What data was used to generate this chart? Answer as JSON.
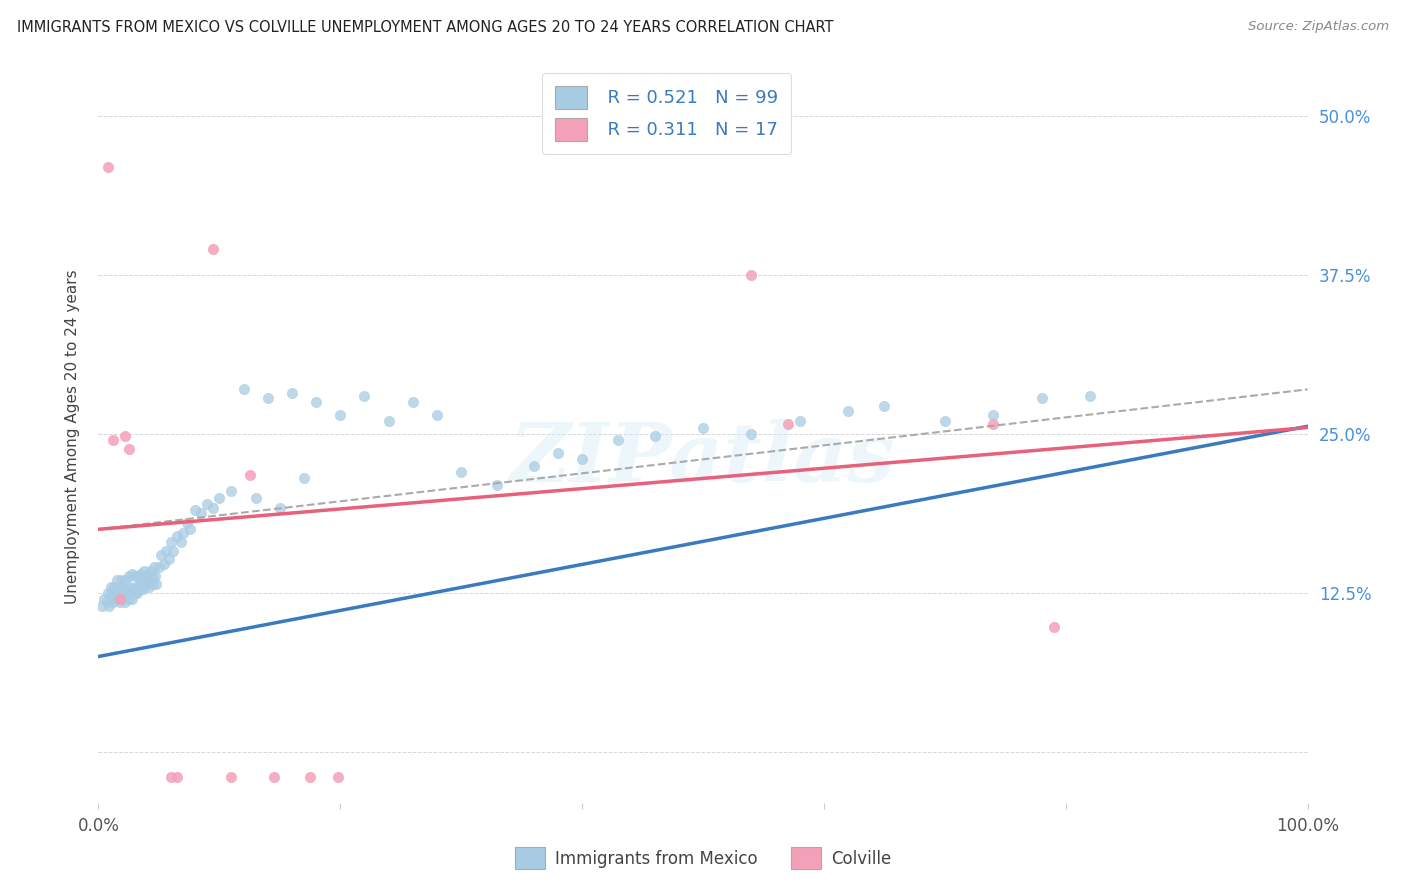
{
  "title": "IMMIGRANTS FROM MEXICO VS COLVILLE UNEMPLOYMENT AMONG AGES 20 TO 24 YEARS CORRELATION CHART",
  "source": "Source: ZipAtlas.com",
  "ylabel": "Unemployment Among Ages 20 to 24 years",
  "legend_label1": "Immigrants from Mexico",
  "legend_label2": "Colville",
  "r1": "0.521",
  "n1": "99",
  "r2": "0.311",
  "n2": "17",
  "blue_color": "#a8cce4",
  "pink_color": "#f4a0b8",
  "blue_line_color": "#3a7abf",
  "pink_line_color": "#e8607a",
  "dash_line_color": "#aaaaaa",
  "yticks": [
    0.0,
    0.125,
    0.25,
    0.375,
    0.5
  ],
  "ytick_labels": [
    "",
    "12.5%",
    "25.0%",
    "37.5%",
    "50.0%"
  ],
  "xlim": [
    0.0,
    1.0
  ],
  "ylim": [
    -0.04,
    0.535
  ],
  "blue_scatter_x": [
    0.003,
    0.005,
    0.007,
    0.008,
    0.009,
    0.01,
    0.01,
    0.011,
    0.012,
    0.013,
    0.014,
    0.015,
    0.015,
    0.016,
    0.017,
    0.018,
    0.018,
    0.019,
    0.02,
    0.02,
    0.021,
    0.022,
    0.022,
    0.023,
    0.024,
    0.025,
    0.025,
    0.026,
    0.027,
    0.028,
    0.028,
    0.029,
    0.03,
    0.03,
    0.031,
    0.032,
    0.033,
    0.034,
    0.034,
    0.035,
    0.036,
    0.037,
    0.038,
    0.039,
    0.04,
    0.041,
    0.042,
    0.043,
    0.044,
    0.045,
    0.046,
    0.047,
    0.048,
    0.05,
    0.052,
    0.054,
    0.056,
    0.058,
    0.06,
    0.062,
    0.065,
    0.068,
    0.07,
    0.073,
    0.076,
    0.08,
    0.085,
    0.09,
    0.095,
    0.1,
    0.11,
    0.12,
    0.13,
    0.14,
    0.15,
    0.16,
    0.17,
    0.18,
    0.2,
    0.22,
    0.24,
    0.26,
    0.28,
    0.3,
    0.33,
    0.36,
    0.38,
    0.4,
    0.43,
    0.46,
    0.5,
    0.54,
    0.58,
    0.62,
    0.65,
    0.7,
    0.74,
    0.78,
    0.82
  ],
  "blue_scatter_y": [
    0.115,
    0.12,
    0.118,
    0.125,
    0.115,
    0.13,
    0.12,
    0.125,
    0.118,
    0.13,
    0.122,
    0.125,
    0.135,
    0.12,
    0.13,
    0.125,
    0.118,
    0.135,
    0.12,
    0.13,
    0.125,
    0.118,
    0.135,
    0.128,
    0.125,
    0.12,
    0.138,
    0.13,
    0.125,
    0.12,
    0.14,
    0.128,
    0.125,
    0.138,
    0.13,
    0.125,
    0.138,
    0.132,
    0.128,
    0.14,
    0.135,
    0.128,
    0.142,
    0.132,
    0.138,
    0.135,
    0.13,
    0.142,
    0.138,
    0.132,
    0.145,
    0.138,
    0.132,
    0.145,
    0.155,
    0.148,
    0.158,
    0.152,
    0.165,
    0.158,
    0.17,
    0.165,
    0.172,
    0.18,
    0.175,
    0.19,
    0.188,
    0.195,
    0.192,
    0.2,
    0.205,
    0.285,
    0.2,
    0.278,
    0.192,
    0.282,
    0.215,
    0.275,
    0.265,
    0.28,
    0.26,
    0.275,
    0.265,
    0.22,
    0.21,
    0.225,
    0.235,
    0.23,
    0.245,
    0.248,
    0.255,
    0.25,
    0.26,
    0.268,
    0.272,
    0.26,
    0.265,
    0.278,
    0.28
  ],
  "pink_scatter_x": [
    0.008,
    0.012,
    0.018,
    0.022,
    0.025,
    0.06,
    0.065,
    0.095,
    0.11,
    0.125,
    0.145,
    0.175,
    0.198,
    0.54,
    0.57,
    0.74,
    0.79
  ],
  "pink_scatter_y": [
    0.46,
    0.245,
    0.12,
    0.248,
    0.238,
    -0.02,
    -0.02,
    0.395,
    -0.02,
    0.218,
    -0.02,
    -0.02,
    -0.02,
    0.375,
    0.258,
    0.258,
    0.098
  ],
  "blue_trend_x": [
    0.0,
    1.0
  ],
  "blue_trend_y": [
    0.075,
    0.256
  ],
  "pink_trend_x": [
    0.0,
    1.0
  ],
  "pink_trend_y": [
    0.175,
    0.255
  ],
  "dash_trend_x": [
    0.0,
    1.0
  ],
  "dash_trend_y": [
    0.175,
    0.285
  ],
  "background_color": "#ffffff",
  "grid_color": "#cccccc",
  "watermark": "ZIPatlas"
}
